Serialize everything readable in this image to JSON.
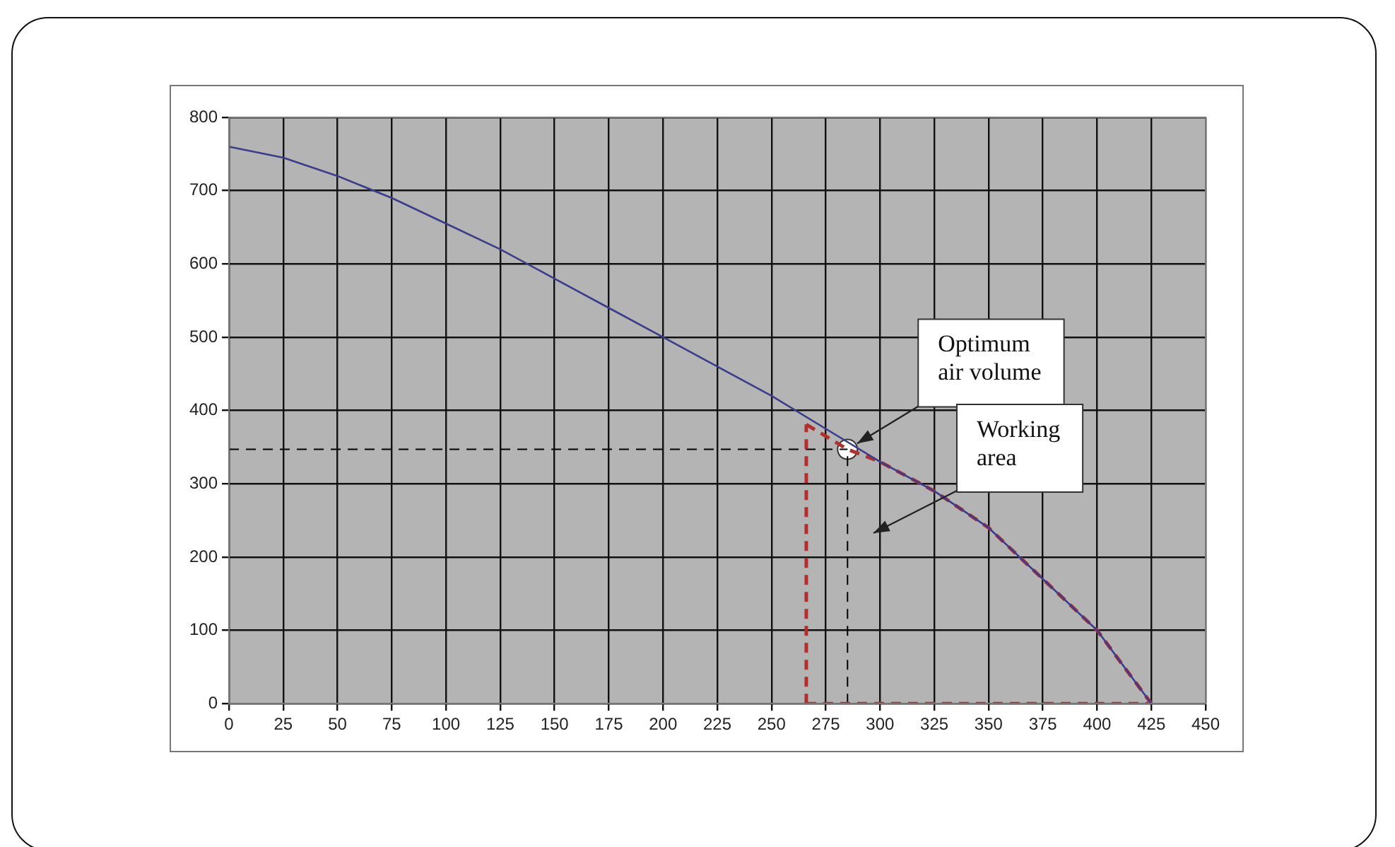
{
  "chart_data": {
    "type": "line",
    "xlim": [
      0,
      450
    ],
    "ylim": [
      0,
      800
    ],
    "xticks": [
      0,
      25,
      50,
      75,
      100,
      125,
      150,
      175,
      200,
      225,
      250,
      275,
      300,
      325,
      350,
      375,
      400,
      425,
      450
    ],
    "yticks": [
      0,
      100,
      200,
      300,
      400,
      500,
      600,
      700,
      800
    ],
    "grid": true,
    "legend": false,
    "marker": "none",
    "series": [
      {
        "color": "#3c3c8c",
        "line_style": "solid",
        "x": [
          0,
          25,
          50,
          75,
          100,
          125,
          150,
          175,
          200,
          225,
          250,
          275,
          300,
          325,
          350,
          375,
          400,
          425
        ],
        "values": [
          760,
          745,
          720,
          690,
          655,
          620,
          580,
          540,
          500,
          460,
          420,
          375,
          330,
          290,
          240,
          170,
          100,
          0
        ]
      },
      {
        "color": "#b03030",
        "line_style": "dashed",
        "x": [
          266,
          266
        ],
        "values": [
          0,
          381
        ]
      },
      {
        "color": "#b03030",
        "line_style": "dashed",
        "x": [
          266,
          285,
          300,
          325,
          350,
          375,
          400,
          425
        ],
        "values": [
          381,
          347,
          330,
          290,
          240,
          170,
          100,
          0
        ]
      },
      {
        "color": "#b03030",
        "line_style": "dashed",
        "x": [
          266,
          425
        ],
        "values": [
          0,
          0
        ]
      },
      {
        "color": "#000000",
        "line_style": "dashed",
        "x": [
          0,
          285
        ],
        "values": [
          347,
          347
        ]
      },
      {
        "color": "#000000",
        "line_style": "dashed",
        "x": [
          285,
          285
        ],
        "values": [
          0,
          347
        ]
      },
      {
        "type": "scatter",
        "color": "#ffffff",
        "marker": "circle",
        "x": [
          285
        ],
        "values": [
          347
        ]
      }
    ],
    "annotations": [
      {
        "text": "Optimum air volume",
        "x": 285,
        "y": 347
      },
      "Working area"
    ]
  }
}
